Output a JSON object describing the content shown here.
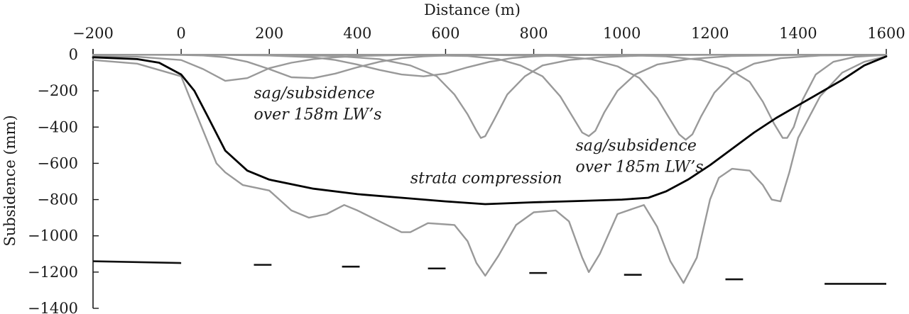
{
  "chart_data": {
    "type": "line",
    "xlabel": "Distance (m)",
    "ylabel": "Subsidence (mm)",
    "xlim": [
      -200,
      1600
    ],
    "ylim": [
      -1400,
      0
    ],
    "x_ticks": [
      -200,
      0,
      200,
      400,
      600,
      800,
      1000,
      1200,
      1400,
      1600
    ],
    "x_tick_labels": [
      "−200",
      "0",
      "200",
      "400",
      "600",
      "800",
      "1000",
      "1200",
      "1400",
      "1600"
    ],
    "y_ticks": [
      0,
      -200,
      -400,
      -600,
      -800,
      -1000,
      -1200,
      -1400
    ],
    "y_tick_labels": [
      "0",
      "−200",
      "−400",
      "−600",
      "−800",
      "−1000",
      "−1200",
      "−1400"
    ],
    "grid": false,
    "series": [
      {
        "color": "#000000",
        "x": [
          -200,
          -100,
          -50,
          0,
          30,
          60,
          100,
          150,
          200,
          300,
          400,
          500,
          600,
          690,
          800,
          900,
          1000,
          1060,
          1100,
          1150,
          1200,
          1250,
          1300,
          1350,
          1400,
          1450,
          1500,
          1550,
          1600
        ],
        "y": [
          -15,
          -25,
          -45,
          -110,
          -200,
          -340,
          -530,
          -640,
          -690,
          -740,
          -770,
          -790,
          -810,
          -825,
          -815,
          -808,
          -800,
          -790,
          -755,
          -690,
          -610,
          -520,
          -430,
          -350,
          -280,
          -210,
          -140,
          -60,
          -10
        ]
      },
      {
        "color": "#999999",
        "x": [
          -200,
          -100,
          0,
          20,
          50,
          80,
          100,
          140,
          200,
          250,
          290,
          330,
          370,
          400,
          450,
          500,
          520,
          560,
          620,
          650,
          670,
          690,
          720,
          760,
          800,
          850,
          880,
          910,
          925,
          950,
          990,
          1050,
          1080,
          1110,
          1140,
          1170,
          1200,
          1220,
          1250,
          1290,
          1320,
          1340,
          1360,
          1380,
          1400,
          1450,
          1500,
          1550,
          1600
        ],
        "y": [
          -30,
          -50,
          -120,
          -240,
          -420,
          -600,
          -650,
          -720,
          -750,
          -860,
          -900,
          -880,
          -830,
          -860,
          -920,
          -980,
          -980,
          -930,
          -940,
          -1030,
          -1150,
          -1220,
          -1110,
          -940,
          -870,
          -860,
          -920,
          -1120,
          -1200,
          -1100,
          -880,
          -830,
          -950,
          -1140,
          -1260,
          -1120,
          -800,
          -680,
          -630,
          -640,
          -720,
          -800,
          -810,
          -650,
          -460,
          -230,
          -100,
          -40,
          -10
        ]
      },
      {
        "color": "#999999",
        "x": [
          -200,
          -100,
          0,
          50,
          100,
          150,
          200,
          250,
          300,
          350,
          400,
          450,
          500,
          550,
          600,
          650,
          700,
          750,
          800,
          850,
          900,
          950,
          1000,
          1050,
          1100,
          1150,
          1200,
          1250,
          1300,
          1350,
          1400,
          1450,
          1500,
          1550,
          1600
        ],
        "y": [
          -10,
          -12,
          -30,
          -80,
          -145,
          -130,
          -75,
          -45,
          -25,
          -15,
          -8,
          -5,
          -3,
          -2,
          -1,
          -1,
          -1,
          -1,
          -1,
          -1,
          -1,
          -1,
          -1,
          -1,
          -1,
          -1,
          -1,
          -1,
          -1,
          -1,
          -1,
          -1,
          -1,
          -1,
          -1
        ]
      },
      {
        "color": "#999999",
        "x": [
          -200,
          -100,
          0,
          50,
          100,
          150,
          200,
          250,
          300,
          350,
          400,
          450,
          500,
          550,
          600,
          650,
          700,
          750,
          800,
          850,
          900,
          950,
          1000,
          1100,
          1200,
          1300,
          1400,
          1500,
          1600
        ],
        "y": [
          -1,
          -1,
          -2,
          -5,
          -15,
          -40,
          -80,
          -125,
          -130,
          -105,
          -70,
          -40,
          -20,
          -10,
          -5,
          -3,
          -2,
          -1,
          -1,
          -1,
          -1,
          -1,
          -1,
          -1,
          -1,
          -1,
          -1,
          -1,
          -1
        ]
      },
      {
        "color": "#999999",
        "x": [
          -200,
          -100,
          0,
          100,
          200,
          300,
          350,
          400,
          450,
          500,
          550,
          600,
          650,
          700,
          750,
          800,
          850,
          900,
          950,
          1000,
          1050,
          1100,
          1200,
          1300,
          1400,
          1500,
          1600
        ],
        "y": [
          -1,
          -1,
          -1,
          -2,
          -5,
          -15,
          -30,
          -55,
          -85,
          -110,
          -120,
          -105,
          -70,
          -40,
          -20,
          -10,
          -5,
          -3,
          -1,
          -1,
          -1,
          -1,
          -1,
          -1,
          -1,
          -1,
          -1
        ]
      },
      {
        "color": "#999999",
        "x": [
          -200,
          0,
          200,
          350,
          450,
          520,
          580,
          620,
          650,
          670,
          680,
          690,
          710,
          740,
          780,
          820,
          880,
          950,
          1050,
          1150,
          1300,
          1450,
          1600
        ],
        "y": [
          -1,
          -1,
          -2,
          -8,
          -25,
          -60,
          -120,
          -220,
          -330,
          -420,
          -460,
          -450,
          -360,
          -220,
          -120,
          -60,
          -30,
          -15,
          -5,
          -2,
          -1,
          -1,
          -1
        ]
      },
      {
        "color": "#999999",
        "x": [
          -200,
          200,
          500,
          650,
          720,
          770,
          820,
          860,
          890,
          910,
          925,
          940,
          960,
          990,
          1030,
          1080,
          1150,
          1250,
          1400,
          1600
        ],
        "y": [
          -1,
          -1,
          -2,
          -8,
          -25,
          -60,
          -120,
          -230,
          -350,
          -430,
          -450,
          -420,
          -320,
          -200,
          -110,
          -55,
          -25,
          -8,
          -2,
          -1
        ]
      },
      {
        "color": "#999999",
        "x": [
          -200,
          300,
          700,
          850,
          930,
          990,
          1040,
          1080,
          1110,
          1130,
          1145,
          1160,
          1180,
          1210,
          1250,
          1300,
          1360,
          1450,
          1600
        ],
        "y": [
          -1,
          -1,
          -2,
          -8,
          -25,
          -65,
          -130,
          -240,
          -360,
          -440,
          -470,
          -440,
          -340,
          -210,
          -110,
          -50,
          -20,
          -5,
          -1
        ]
      },
      {
        "color": "#999999",
        "x": [
          -200,
          600,
          1000,
          1100,
          1180,
          1240,
          1290,
          1320,
          1345,
          1365,
          1375,
          1390,
          1410,
          1440,
          1480,
          1530,
          1600
        ],
        "y": [
          -1,
          -1,
          -3,
          -10,
          -30,
          -75,
          -150,
          -260,
          -380,
          -460,
          -460,
          -400,
          -250,
          -110,
          -40,
          -12,
          -2
        ]
      }
    ],
    "panel_markers": [
      {
        "x": [
          -200,
          0
        ],
        "y": [
          -1140,
          -1150
        ]
      },
      {
        "x": [
          165,
          205
        ],
        "y": [
          -1160,
          -1160
        ]
      },
      {
        "x": [
          365,
          405
        ],
        "y": [
          -1170,
          -1170
        ]
      },
      {
        "x": [
          560,
          600
        ],
        "y": [
          -1180,
          -1180
        ]
      },
      {
        "x": [
          790,
          830
        ],
        "y": [
          -1205,
          -1205
        ]
      },
      {
        "x": [
          1005,
          1045
        ],
        "y": [
          -1215,
          -1215
        ]
      },
      {
        "x": [
          1235,
          1275
        ],
        "y": [
          -1240,
          -1240
        ]
      },
      {
        "x": [
          1460,
          1600
        ],
        "y": [
          -1265,
          -1265
        ]
      }
    ],
    "annotations": [
      {
        "lines": [
          "sag/subsidence",
          "over 158m LW’s"
        ],
        "x": 165,
        "y": -240
      },
      {
        "lines": [
          "sag/subsidence",
          "over 185m LW’s"
        ],
        "x": 895,
        "y": -530
      },
      {
        "lines": [
          "strata compression"
        ],
        "x": 520,
        "y": -710
      }
    ]
  }
}
